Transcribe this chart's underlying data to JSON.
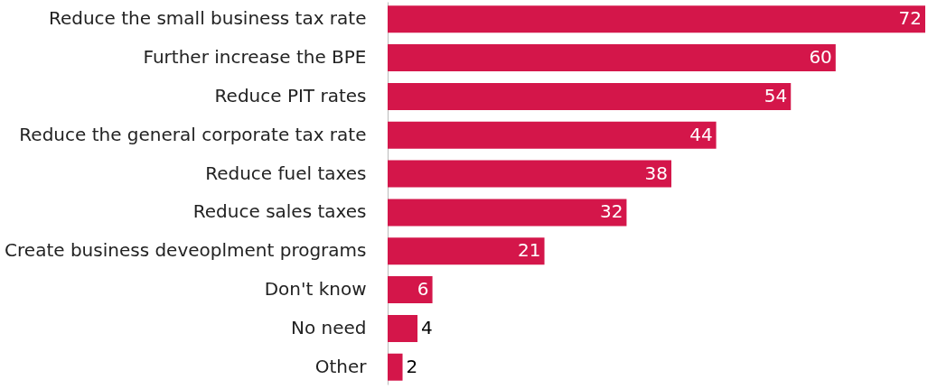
{
  "chart_data": {
    "type": "bar",
    "orientation": "horizontal",
    "categories": [
      "Reduce the small business tax rate",
      "Further increase the BPE",
      "Reduce PIT rates",
      "Reduce the general corporate tax rate",
      "Reduce fuel taxes",
      "Reduce sales taxes",
      "Create business deveoplment programs",
      "Don't know",
      "No need",
      "Other"
    ],
    "values": [
      72,
      60,
      54,
      44,
      38,
      32,
      21,
      6,
      4,
      2
    ],
    "color": "#d4164a",
    "data_labels": true
  }
}
